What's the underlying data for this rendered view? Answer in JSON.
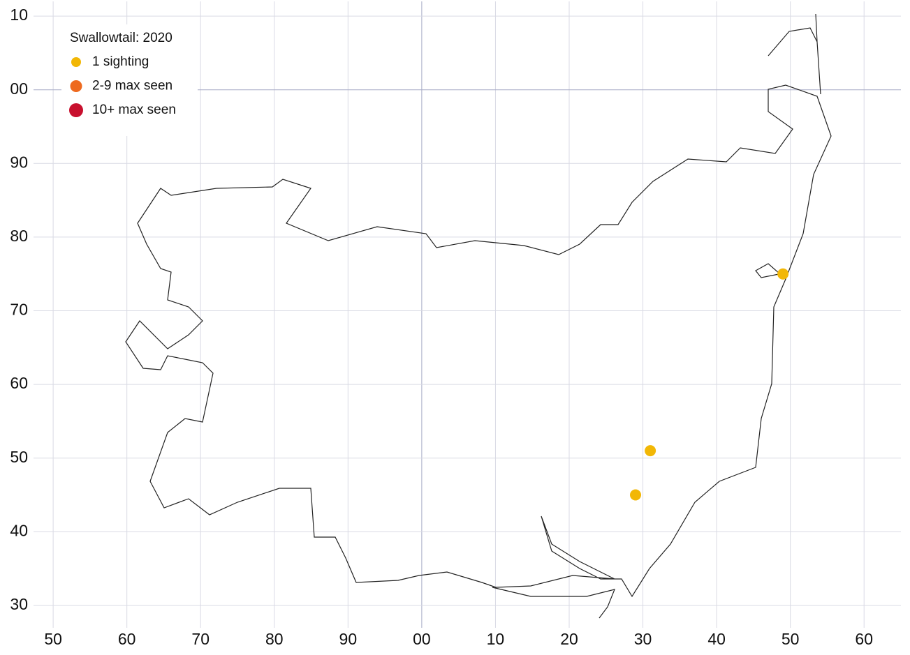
{
  "chart_data": {
    "type": "scatter",
    "legend_title": "Swallowtail:  2020",
    "series": [
      {
        "name": "1 sighting",
        "color": "#f2b705",
        "x": [
          149,
          131,
          129
        ],
        "y": [
          75,
          51,
          45
        ]
      },
      {
        "name": "2-9 max seen",
        "color": "#ee6a1f",
        "x": [],
        "y": []
      },
      {
        "name": "10+ max seen",
        "color": "#c8102e",
        "x": [],
        "y": []
      }
    ],
    "xlim": [
      48,
      165
    ],
    "ylim": [
      28,
      112
    ],
    "xticks": [
      50,
      60,
      70,
      80,
      90,
      {
        "value": 100,
        "label": "00"
      },
      {
        "value": 110,
        "label": "10"
      },
      {
        "value": 120,
        "label": "20"
      },
      {
        "value": 130,
        "label": "30"
      },
      {
        "value": 140,
        "label": "40"
      },
      {
        "value": 150,
        "label": "50"
      },
      {
        "value": 160,
        "label": "60"
      }
    ],
    "yticks": [
      30,
      40,
      50,
      60,
      70,
      80,
      90,
      {
        "value": 100,
        "label": "00"
      },
      {
        "value": 110,
        "label": "10"
      }
    ],
    "grid": true,
    "legend": "upper left"
  }
}
